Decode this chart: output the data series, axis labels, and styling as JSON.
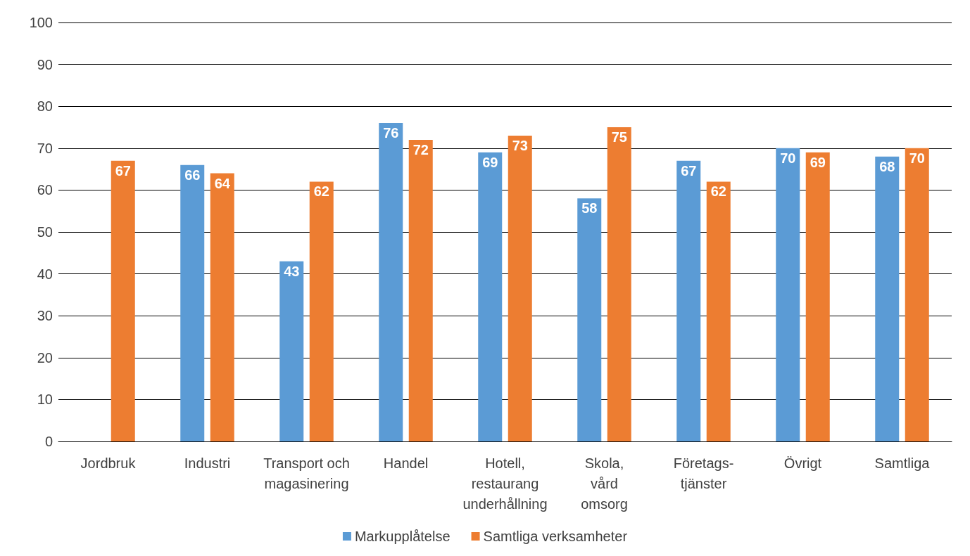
{
  "chart_data": {
    "type": "bar",
    "categories": [
      "Jordbruk",
      "Industri",
      "Transport och\nmagasinering",
      "Handel",
      "Hotell,\nrestaurang\nunderhållning",
      "Skola,\nvård\nomsorg",
      "Företags-\ntjänster",
      "Övrigt",
      "Samtliga"
    ],
    "series": [
      {
        "name": "Markupplåtelse",
        "color": "#5b9bd5",
        "values": [
          null,
          66,
          43,
          76,
          69,
          58,
          67,
          70,
          68
        ]
      },
      {
        "name": "Samtliga verksamheter",
        "color": "#ed7d31",
        "values": [
          67,
          64,
          62,
          72,
          73,
          75,
          62,
          69,
          70
        ]
      }
    ],
    "ylim": [
      0,
      100
    ],
    "yticks": [
      0,
      10,
      20,
      30,
      40,
      50,
      60,
      70,
      80,
      90,
      100
    ],
    "grid": "y",
    "legend": "bottom",
    "data_labels": true
  }
}
